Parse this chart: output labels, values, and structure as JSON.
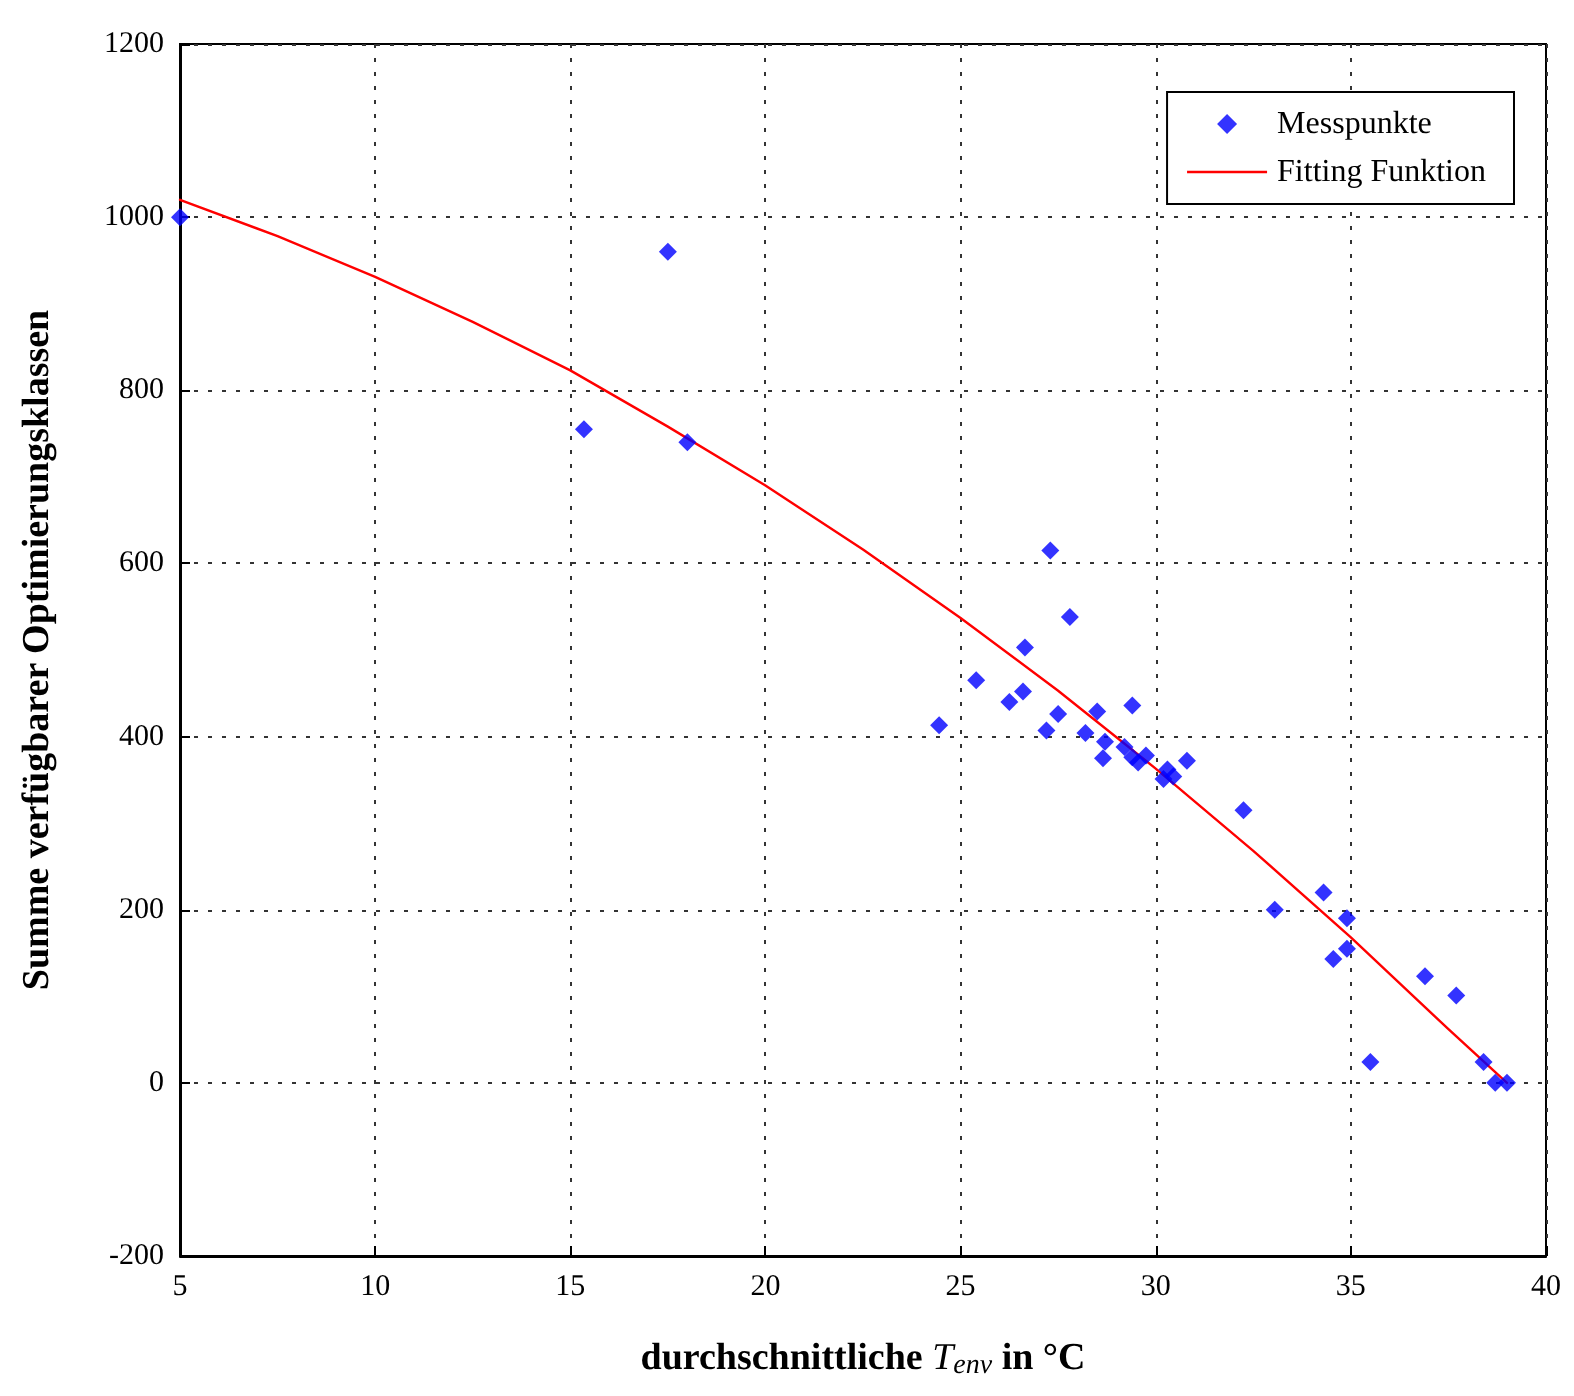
{
  "chart_data": {
    "type": "scatter",
    "xlabel": "durchschnittliche T$_{env}$ in °C",
    "ylabel": "Summe verfügbarer Optimierungsklassen",
    "xlim": [
      5,
      40
    ],
    "xticks": [
      5,
      10,
      15,
      20,
      25,
      30,
      35,
      40
    ],
    "ylim": [
      -200,
      1200
    ],
    "yticks": [
      -200,
      0,
      200,
      400,
      600,
      800,
      1000,
      1200
    ],
    "grid": true,
    "legend": "top right",
    "marker": "diamond",
    "series": [
      {
        "name": "Messpunkte",
        "color": "#0000ff",
        "x": [
          5,
          17.5,
          15.35,
          18,
          24.45,
          25.4,
          26.25,
          26.6,
          26.65,
          27.3,
          27.8,
          27.2,
          27.5,
          28.2,
          28.5,
          28.7,
          28.65,
          29.4,
          29.2,
          29.4,
          29.55,
          29.75,
          30.2,
          30.3,
          30.45,
          30.8,
          32.25,
          33.05,
          34.3,
          34.9,
          34.55,
          34.9,
          36.9,
          37.7,
          35.5,
          38.4,
          38.7,
          39
        ],
        "values": [
          1000,
          960,
          755,
          740,
          413,
          465,
          440,
          452,
          503,
          615,
          538,
          407,
          426,
          404,
          429,
          394,
          375,
          436,
          388,
          376,
          370,
          378,
          351,
          362,
          354,
          372,
          315,
          200,
          220,
          190,
          143,
          155,
          123,
          101,
          24,
          24,
          0,
          0
        ]
      },
      {
        "name": "Fitting Funktion",
        "type": "line",
        "color": "#ff0000",
        "line_style": "solid",
        "marker": "none",
        "x": [
          5,
          7.5,
          10,
          12.5,
          15,
          17.5,
          20,
          22.5,
          25,
          27.5,
          30,
          32.5,
          35,
          37.5,
          39
        ],
        "values": [
          1020,
          978,
          931,
          879,
          823,
          758,
          690,
          616,
          537,
          453,
          363,
          268,
          168,
          62,
          0
        ]
      }
    ]
  }
}
